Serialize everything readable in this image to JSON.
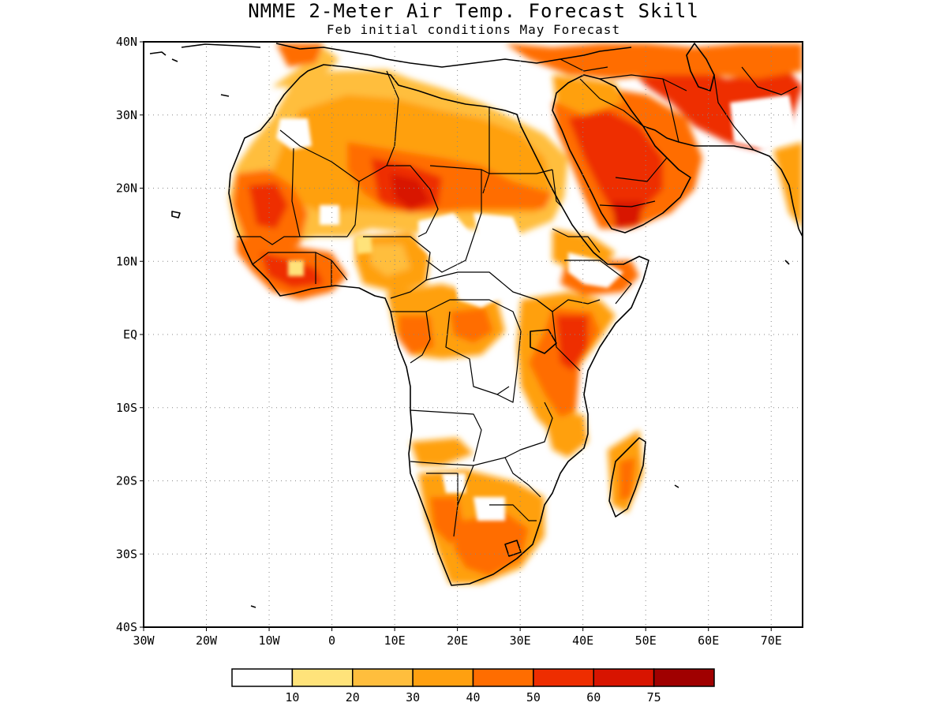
{
  "title": "NMME 2-Meter Air Temp. Forecast Skill",
  "subtitle": "Feb initial conditions  May Forecast",
  "map": {
    "lon_range": [
      -30,
      75
    ],
    "lat_range": [
      -40,
      40
    ],
    "lat_ticks": [
      {
        "v": 40,
        "label": "40N"
      },
      {
        "v": 30,
        "label": "30N"
      },
      {
        "v": 20,
        "label": "20N"
      },
      {
        "v": 10,
        "label": "10N"
      },
      {
        "v": 0,
        "label": "EQ"
      },
      {
        "v": -10,
        "label": "10S"
      },
      {
        "v": -20,
        "label": "20S"
      },
      {
        "v": -30,
        "label": "30S"
      },
      {
        "v": -40,
        "label": "40S"
      }
    ],
    "lon_ticks": [
      {
        "v": -30,
        "label": "30W"
      },
      {
        "v": -20,
        "label": "20W"
      },
      {
        "v": -10,
        "label": "10W"
      },
      {
        "v": 0,
        "label": "0"
      },
      {
        "v": 10,
        "label": "10E"
      },
      {
        "v": 20,
        "label": "20E"
      },
      {
        "v": 30,
        "label": "30E"
      },
      {
        "v": 40,
        "label": "40E"
      },
      {
        "v": 50,
        "label": "50E"
      },
      {
        "v": 60,
        "label": "60E"
      },
      {
        "v": 70,
        "label": "70E"
      }
    ],
    "gridlines": "dotted"
  },
  "colorbar": {
    "colors": [
      "#ffffff",
      "#ffe37a",
      "#ffbe3d",
      "#ffa010",
      "#ff6d00",
      "#ee2d00",
      "#d81400",
      "#a00000"
    ],
    "labels": [
      "10",
      "20",
      "30",
      "40",
      "50",
      "60",
      "75"
    ]
  }
}
